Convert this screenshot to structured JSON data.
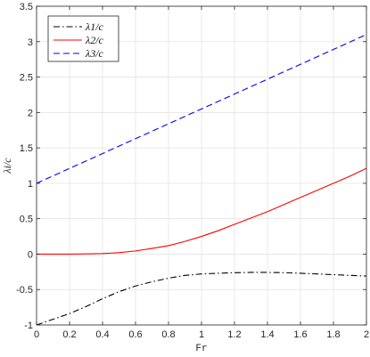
{
  "chart_data": {
    "type": "line",
    "xlabel": "Fr",
    "ylabel": "λi/c",
    "xlim": [
      0,
      2
    ],
    "ylim": [
      -1,
      3.5
    ],
    "xticks": [
      "0",
      "0.2",
      "0.4",
      "0.6",
      "0.8",
      "1",
      "1.2",
      "1.4",
      "1.6",
      "1.8",
      "2"
    ],
    "yticks": [
      "-1",
      "-0.5",
      "0",
      "0.5",
      "1",
      "1.5",
      "2",
      "2.5",
      "3",
      "3.5"
    ],
    "grid": true,
    "legend_position": "top-left",
    "x": [
      0,
      0.1,
      0.2,
      0.3,
      0.4,
      0.5,
      0.6,
      0.7,
      0.8,
      0.9,
      1.0,
      1.1,
      1.2,
      1.3,
      1.4,
      1.5,
      1.6,
      1.7,
      1.8,
      1.9,
      2.0
    ],
    "series": [
      {
        "name": "λ1/c",
        "style": "dash-dot",
        "color": "#000000",
        "values": [
          -1.0,
          -0.92,
          -0.84,
          -0.74,
          -0.63,
          -0.53,
          -0.45,
          -0.39,
          -0.34,
          -0.3,
          -0.28,
          -0.27,
          -0.262,
          -0.258,
          -0.258,
          -0.262,
          -0.27,
          -0.28,
          -0.29,
          -0.3,
          -0.31
        ]
      },
      {
        "name": "λ2/c",
        "style": "solid",
        "color": "#ff0000",
        "values": [
          0.0,
          0.0,
          0.0,
          0.003,
          0.008,
          0.02,
          0.045,
          0.08,
          0.12,
          0.18,
          0.25,
          0.33,
          0.42,
          0.51,
          0.6,
          0.7,
          0.8,
          0.9,
          1.0,
          1.1,
          1.21
        ]
      },
      {
        "name": "λ3/c",
        "style": "dashed",
        "color": "#0000ff",
        "values": [
          1.0,
          1.105,
          1.21,
          1.315,
          1.42,
          1.525,
          1.63,
          1.735,
          1.84,
          1.945,
          2.05,
          2.155,
          2.26,
          2.365,
          2.47,
          2.575,
          2.68,
          2.785,
          2.89,
          2.995,
          3.1
        ]
      }
    ]
  }
}
